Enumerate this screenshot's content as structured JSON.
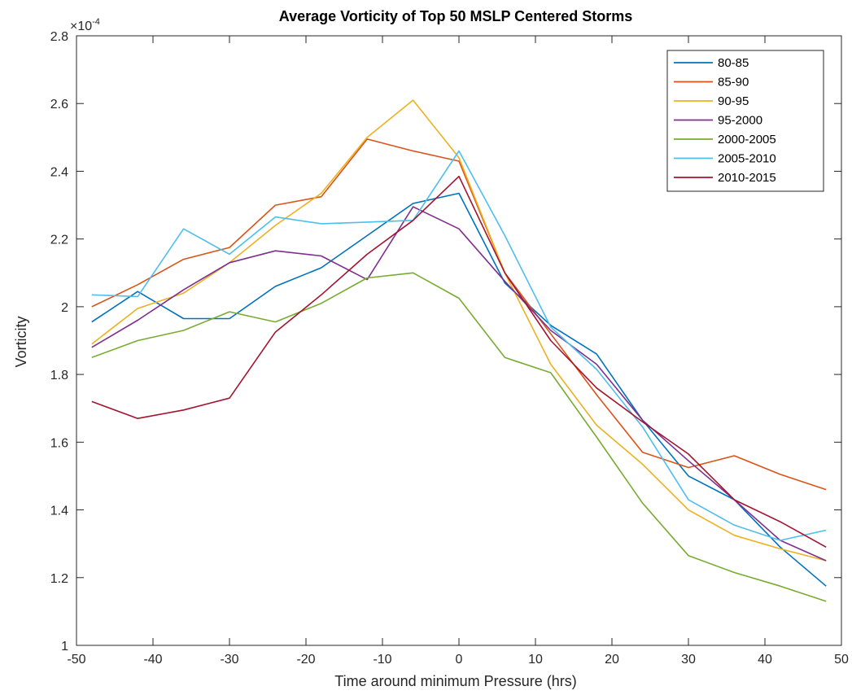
{
  "chart_data": {
    "type": "line",
    "title": "Average Vorticity of Top 50 MSLP Centered Storms",
    "xlabel": "Time around minimum Pressure (hrs)",
    "ylabel": "Vorticity",
    "y_exponent_base": "×10",
    "y_exponent_power": "-4",
    "xlim": [
      -50,
      50
    ],
    "ylim": [
      1,
      2.8
    ],
    "x_ticks": [
      -50,
      -40,
      -30,
      -20,
      -10,
      0,
      10,
      20,
      30,
      40,
      50
    ],
    "x_tick_labels": [
      "-50",
      "-40",
      "-30",
      "-20",
      "-10",
      "0",
      "10",
      "20",
      "30",
      "40",
      "50"
    ],
    "y_ticks": [
      1,
      1.2,
      1.4,
      1.6,
      1.8,
      2,
      2.2,
      2.4,
      2.6,
      2.8
    ],
    "y_tick_labels": [
      "1",
      "1.2",
      "1.4",
      "1.6",
      "1.8",
      "2",
      "2.2",
      "2.4",
      "2.6",
      "2.8"
    ],
    "grid": false,
    "legend_position": "top-right",
    "x": [
      -48,
      -42,
      -36,
      -30,
      -24,
      -18,
      -12,
      -6,
      0,
      6,
      12,
      18,
      24,
      30,
      36,
      42,
      48
    ],
    "series": [
      {
        "name": "80-85",
        "color": "#0072bd",
        "values": [
          1.955,
          2.045,
          1.965,
          1.965,
          2.06,
          2.115,
          2.21,
          2.305,
          2.335,
          2.07,
          1.945,
          1.86,
          1.665,
          1.5,
          1.43,
          1.29,
          1.175
        ]
      },
      {
        "name": "85-90",
        "color": "#d95319",
        "values": [
          2.0,
          2.065,
          2.14,
          2.175,
          2.3,
          2.325,
          2.495,
          2.46,
          2.43,
          2.1,
          1.92,
          1.74,
          1.57,
          1.525,
          1.56,
          1.505,
          1.46
        ]
      },
      {
        "name": "90-95",
        "color": "#edb120",
        "values": [
          1.89,
          1.995,
          2.04,
          2.13,
          2.24,
          2.335,
          2.5,
          2.61,
          2.44,
          2.1,
          1.83,
          1.65,
          1.535,
          1.4,
          1.325,
          1.285,
          1.25
        ]
      },
      {
        "name": "95-2000",
        "color": "#7e2f8e",
        "values": [
          1.88,
          1.96,
          2.05,
          2.13,
          2.165,
          2.15,
          2.08,
          2.295,
          2.23,
          2.075,
          1.93,
          1.83,
          1.665,
          1.545,
          1.43,
          1.31,
          1.25
        ]
      },
      {
        "name": "2000-2005",
        "color": "#77ac30",
        "values": [
          1.85,
          1.9,
          1.93,
          1.985,
          1.955,
          2.01,
          2.085,
          2.1,
          2.025,
          1.85,
          1.805,
          1.615,
          1.42,
          1.265,
          1.215,
          1.175,
          1.13
        ]
      },
      {
        "name": "2005-2010",
        "color": "#4dbeee",
        "values": [
          2.035,
          2.03,
          2.23,
          2.155,
          2.265,
          2.245,
          2.25,
          2.255,
          2.46,
          2.21,
          1.94,
          1.815,
          1.645,
          1.43,
          1.355,
          1.31,
          1.34
        ]
      },
      {
        "name": "2010-2015",
        "color": "#a2142f",
        "values": [
          1.72,
          1.67,
          1.695,
          1.73,
          1.925,
          2.035,
          2.155,
          2.255,
          2.385,
          2.1,
          1.9,
          1.76,
          1.66,
          1.565,
          1.43,
          1.365,
          1.29
        ]
      }
    ]
  }
}
